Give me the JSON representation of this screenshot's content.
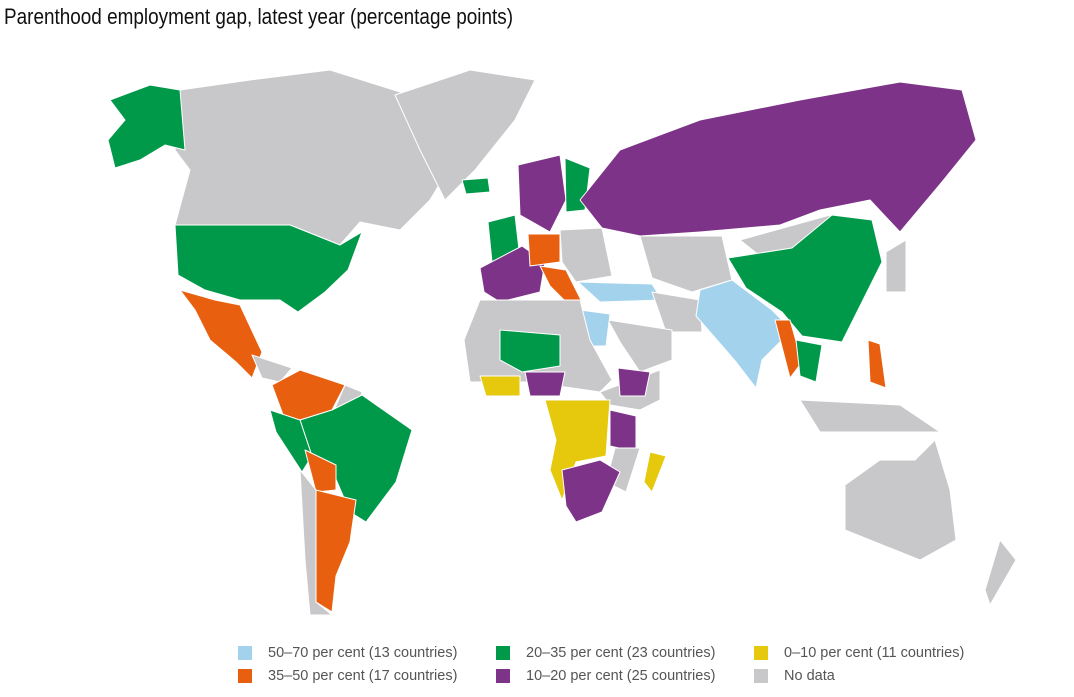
{
  "title": "Parenthood employment gap, latest year (percentage points)",
  "legend": [
    {
      "key": "c50",
      "label": "50–70 per cent (13 countries)",
      "color": "#a3d2ec"
    },
    {
      "key": "c20",
      "label": "20–35 per cent (23 countries)",
      "color": "#00994a"
    },
    {
      "key": "c0",
      "label": "0–10 per cent (11 countries)",
      "color": "#e6c80c"
    },
    {
      "key": "c35",
      "label": "35–50 per cent (17 countries)",
      "color": "#e8600f"
    },
    {
      "key": "c10",
      "label": "10–20 per cent (25 countries)",
      "color": "#7d3388"
    },
    {
      "key": "nd",
      "label": "No data",
      "color": "#c8c8ca"
    }
  ]
}
